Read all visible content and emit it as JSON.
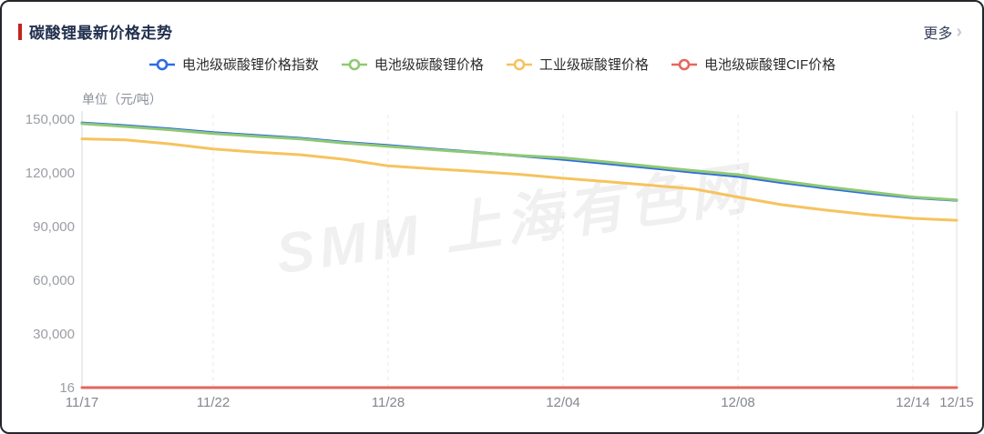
{
  "header": {
    "title": "碳酸锂最新价格走势",
    "more_label": "更多",
    "chevron": "›"
  },
  "unit_label": "单位（元/吨）",
  "watermark": "SMM 上海有色网",
  "colors": {
    "accent_bar": "#c5231d",
    "title_text": "#22304f",
    "more_text": "#38425e",
    "chevron": "#c6cad3",
    "y_axis_label": "#9a9ea4",
    "x_axis_label": "#83878e",
    "axis_line": "#d9d9d9",
    "gridline": "#e8e8e8",
    "plot_right_border": "#ececec",
    "watermark": "rgba(0,0,0,0.06)"
  },
  "chart_data": {
    "type": "line",
    "title": "碳酸锂最新价格走势",
    "xlabel": "",
    "ylabel": "单位（元/吨）",
    "ylim": [
      16,
      150000
    ],
    "grid": "vertical-dashed",
    "legend_position": "top-center",
    "x": [
      "11/17",
      "11/20",
      "11/21",
      "11/22",
      "11/23",
      "11/24",
      "11/27",
      "11/28",
      "11/29",
      "11/30",
      "12/01",
      "12/04",
      "12/05",
      "12/06",
      "12/07",
      "12/08",
      "12/11",
      "12/12",
      "12/13",
      "12/14",
      "12/15"
    ],
    "x_tick_labels": [
      "11/17",
      "11/22",
      "11/28",
      "12/04",
      "12/08",
      "12/14",
      "12/15"
    ],
    "x_tick_indices": [
      0,
      3,
      7,
      11,
      15,
      19,
      20
    ],
    "y_tick_values": [
      150000,
      120000,
      90000,
      60000,
      30000,
      16
    ],
    "y_tick_labels": [
      "150,000",
      "120,000",
      "90,000",
      "60,000",
      "30,000",
      "16"
    ],
    "series": [
      {
        "name": "电池级碳酸锂价格指数",
        "color": "#2f6be5",
        "values": [
          147900,
          146400,
          144600,
          142500,
          140900,
          139300,
          137100,
          135300,
          133400,
          131500,
          129600,
          127600,
          125200,
          122800,
          120300,
          118000,
          114600,
          111500,
          108600,
          106100,
          104700
        ]
      },
      {
        "name": "电池级碳酸锂价格",
        "color": "#8fc973",
        "values": [
          147500,
          145900,
          144100,
          142000,
          140400,
          138900,
          136700,
          134800,
          133000,
          131300,
          129700,
          128400,
          126100,
          123600,
          121200,
          119000,
          115500,
          112300,
          109400,
          106500,
          104900
        ]
      },
      {
        "name": "工业级碳酸锂价格",
        "color": "#f6c35f",
        "values": [
          139000,
          138400,
          136200,
          133300,
          131600,
          130100,
          127600,
          123900,
          122300,
          120800,
          119200,
          117000,
          115100,
          113100,
          111000,
          106500,
          102200,
          99200,
          96600,
          94600,
          93500
        ]
      },
      {
        "name": "电池级碳酸锂CIF价格",
        "color": "#e4675e",
        "values": [
          16,
          16,
          16,
          16,
          16,
          16,
          16,
          16,
          16,
          16,
          16,
          16,
          16,
          16,
          16,
          16,
          16,
          16,
          16,
          16,
          16
        ]
      }
    ]
  }
}
